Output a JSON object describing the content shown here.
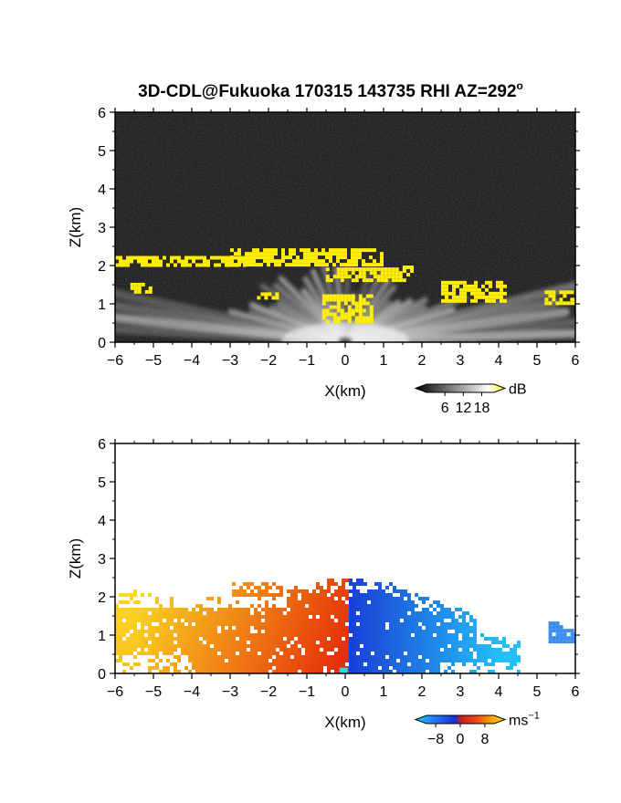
{
  "title": "3D-CDL@Fukuoka 170315 143735 RHI AZ=292",
  "title_degree": "o",
  "chart_data": [
    {
      "type": "heatmap",
      "panel": "snr",
      "xlabel": "X(km)",
      "ylabel": "Z(km)",
      "xlim": [
        -6,
        6
      ],
      "ylim": [
        0,
        6
      ],
      "xticks": [
        "-6",
        "-5",
        "-4",
        "-3",
        "-2",
        "-1",
        "0",
        "1",
        "2",
        "3",
        "4",
        "5",
        "6"
      ],
      "yticks": [
        "0",
        "1",
        "2",
        "3",
        "4",
        "5",
        "6"
      ],
      "colorbar": {
        "label": "dB",
        "ticks": [
          "6",
          "12",
          "18"
        ],
        "tick_values": [
          6,
          12,
          18
        ],
        "range": [
          0,
          22
        ]
      },
      "background": "#3a3a3a",
      "fan_color": "#d8d8d8",
      "high_color": "#ffee00",
      "high_regions": [
        {
          "x": [
            -6.0,
            -2.5
          ],
          "z": [
            2.0,
            2.25
          ]
        },
        {
          "x": [
            -3.0,
            1.0
          ],
          "z": [
            2.0,
            2.45
          ]
        },
        {
          "x": [
            -0.6,
            1.5
          ],
          "z": [
            1.6,
            1.95
          ]
        },
        {
          "x": [
            -0.6,
            0.7
          ],
          "z": [
            0.5,
            1.25
          ]
        },
        {
          "x": [
            -2.3,
            -1.8
          ],
          "z": [
            1.15,
            1.3
          ]
        },
        {
          "x": [
            -5.6,
            -5.1
          ],
          "z": [
            1.3,
            1.55
          ]
        },
        {
          "x": [
            2.5,
            4.2
          ],
          "z": [
            1.1,
            1.6
          ]
        },
        {
          "x": [
            5.2,
            6.0
          ],
          "z": [
            1.0,
            1.35
          ]
        },
        {
          "x": [
            1.5,
            1.7
          ],
          "z": [
            1.75,
            2.0
          ]
        }
      ]
    },
    {
      "type": "heatmap",
      "panel": "doppler_velocity",
      "xlabel": "X(km)",
      "ylabel": "Z(km)",
      "xlim": [
        -6,
        6
      ],
      "ylim": [
        0,
        6
      ],
      "xticks": [
        "-6",
        "-5",
        "-4",
        "-3",
        "-2",
        "-1",
        "0",
        "1",
        "2",
        "3",
        "4",
        "5",
        "6"
      ],
      "yticks": [
        "0",
        "1",
        "2",
        "3",
        "4",
        "5",
        "6"
      ],
      "colorbar": {
        "label": "ms",
        "label_exp": "-1",
        "ticks": [
          "-8",
          "0",
          "8"
        ],
        "tick_values": [
          -8,
          0,
          8
        ],
        "range": [
          -11,
          11
        ]
      },
      "negative_velocity_x_range": [
        0,
        6
      ],
      "positive_velocity_x_range": [
        -6,
        0
      ],
      "max_height_km": 2.5
    }
  ]
}
